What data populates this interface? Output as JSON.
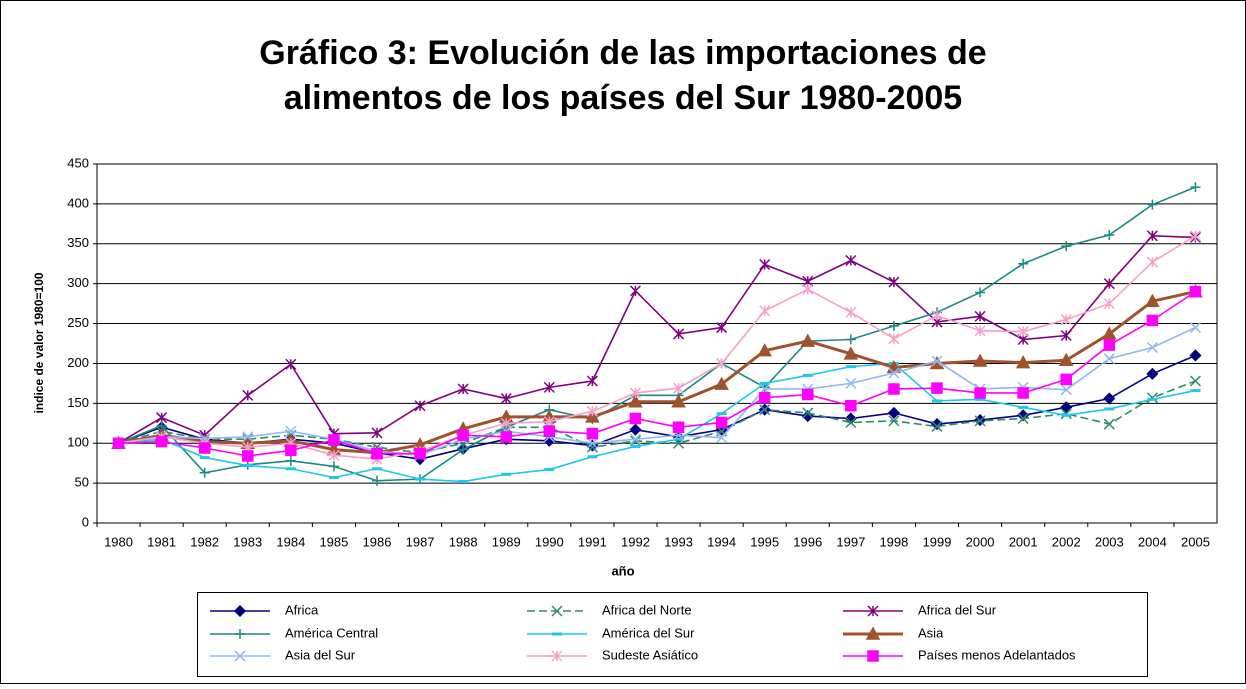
{
  "chart_data": {
    "type": "line",
    "title": [
      "Gráfico 3: Evolución de las importaciones de",
      "alimentos de los países del Sur 1980-2005"
    ],
    "x_label": "año",
    "y_label": "indice de valor 1980=100",
    "categories": [
      "1980",
      "1981",
      "1982",
      "1983",
      "1984",
      "1985",
      "1986",
      "1987",
      "1988",
      "1989",
      "1990",
      "1991",
      "1992",
      "1993",
      "1994",
      "1995",
      "1996",
      "1997",
      "1998",
      "1999",
      "2000",
      "2001",
      "2002",
      "2003",
      "2004",
      "2005"
    ],
    "ylim": [
      0,
      450
    ],
    "yticks": [
      0,
      50,
      100,
      150,
      200,
      250,
      300,
      350,
      400,
      450
    ],
    "grid": true,
    "series": [
      {
        "name": "Africa",
        "color": "#000080",
        "marker": "diamond",
        "values": [
          100,
          120,
          105,
          100,
          105,
          100,
          88,
          80,
          93,
          105,
          103,
          97,
          117,
          108,
          117,
          142,
          134,
          131,
          138,
          124,
          129,
          135,
          145,
          156,
          187,
          210
        ]
      },
      {
        "name": "Africa del Norte",
        "color": "#2e8b6e",
        "marker": "x",
        "dashed": true,
        "values": [
          100,
          115,
          105,
          105,
          110,
          105,
          95,
          88,
          100,
          120,
          120,
          95,
          103,
          100,
          115,
          142,
          138,
          126,
          128,
          121,
          128,
          131,
          137,
          124,
          157,
          178
        ]
      },
      {
        "name": "Africa del Sur",
        "color": "#800080",
        "marker": "star",
        "values": [
          100,
          132,
          110,
          160,
          199,
          112,
          113,
          147,
          168,
          156,
          170,
          178,
          291,
          237,
          245,
          324,
          303,
          329,
          302,
          252,
          259,
          230,
          235,
          300,
          360,
          358
        ]
      },
      {
        "name": "América Central",
        "color": "#1a8a82",
        "marker": "plus",
        "values": [
          100,
          122,
          63,
          73,
          78,
          71,
          53,
          55,
          92,
          120,
          142,
          130,
          160,
          160,
          200,
          170,
          228,
          230,
          247,
          264,
          289,
          325,
          347,
          361,
          399,
          421
        ]
      },
      {
        "name": "América del Sur",
        "color": "#1ec8e8",
        "marker": "dash",
        "values": [
          100,
          105,
          82,
          72,
          68,
          57,
          68,
          55,
          52,
          61,
          67,
          83,
          96,
          105,
          137,
          175,
          185,
          196,
          200,
          153,
          155,
          145,
          135,
          143,
          155,
          166
        ]
      },
      {
        "name": "Asia",
        "color": "#a0522d",
        "marker": "triangle",
        "values": [
          100,
          110,
          102,
          100,
          103,
          92,
          88,
          98,
          118,
          133,
          133,
          133,
          152,
          152,
          174,
          216,
          228,
          212,
          195,
          200,
          203,
          201,
          204,
          237,
          278,
          290
        ]
      },
      {
        "name": "Asia del Sur",
        "color": "#8fb8f0",
        "marker": "x",
        "values": [
          100,
          108,
          106,
          108,
          115,
          105,
          90,
          85,
          105,
          115,
          108,
          100,
          105,
          110,
          107,
          168,
          168,
          175,
          188,
          203,
          168,
          170,
          167,
          206,
          220,
          245
        ]
      },
      {
        "name": "Sudeste Asiático",
        "color": "#f4a0c8",
        "marker": "star",
        "values": [
          100,
          108,
          100,
          95,
          100,
          85,
          80,
          90,
          110,
          125,
          127,
          140,
          163,
          169,
          200,
          266,
          293,
          264,
          231,
          260,
          241,
          240,
          255,
          275,
          327,
          360
        ]
      },
      {
        "name": "Países menos Adelantados",
        "color": "#ff00ff",
        "marker": "square",
        "values": [
          100,
          102,
          94,
          84,
          91,
          104,
          87,
          87,
          110,
          108,
          115,
          112,
          131,
          120,
          126,
          157,
          161,
          147,
          168,
          169,
          163,
          163,
          180,
          223,
          254,
          290
        ]
      }
    ]
  }
}
